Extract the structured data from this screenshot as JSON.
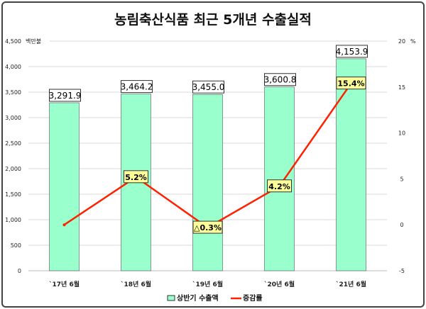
{
  "chart_data": {
    "type": "bar+line",
    "title": "농림축산식품 최근  5개년 수출실적",
    "unit_left": "백만불",
    "unit_right": "%",
    "categories": [
      "`17년 6월",
      "`18년 6월",
      "`19년 6월",
      "`20년 6월",
      "`21년 6월"
    ],
    "series": [
      {
        "name": "상반기 수출액",
        "type": "bar",
        "axis": "left",
        "values": [
          3291.9,
          3464.2,
          3455.0,
          3600.8,
          4153.9
        ],
        "labels": [
          "3,291.9",
          "3,464.2",
          "3,455.0",
          "3,600.8",
          "4,153.9"
        ],
        "color": "#99ffcc"
      },
      {
        "name": "증감률",
        "type": "line",
        "axis": "right",
        "values": [
          0,
          5.2,
          -0.3,
          4.2,
          15.4
        ],
        "labels": [
          "",
          "5.2%",
          "△0.3%",
          "4.2%",
          "15.4%"
        ],
        "color": "#ff2200"
      }
    ],
    "ylim_left": [
      0,
      4500
    ],
    "yticks_left": [
      "0",
      "500",
      "1,000",
      "1,500",
      "2,000",
      "2,500",
      "3,000",
      "3,500",
      "4,000",
      "4,500"
    ],
    "ylim_right": [
      -5,
      20
    ],
    "yticks_right": [
      "-5",
      "0",
      "5",
      "10",
      "15",
      "20"
    ],
    "grid": true,
    "legend": "bottom"
  }
}
